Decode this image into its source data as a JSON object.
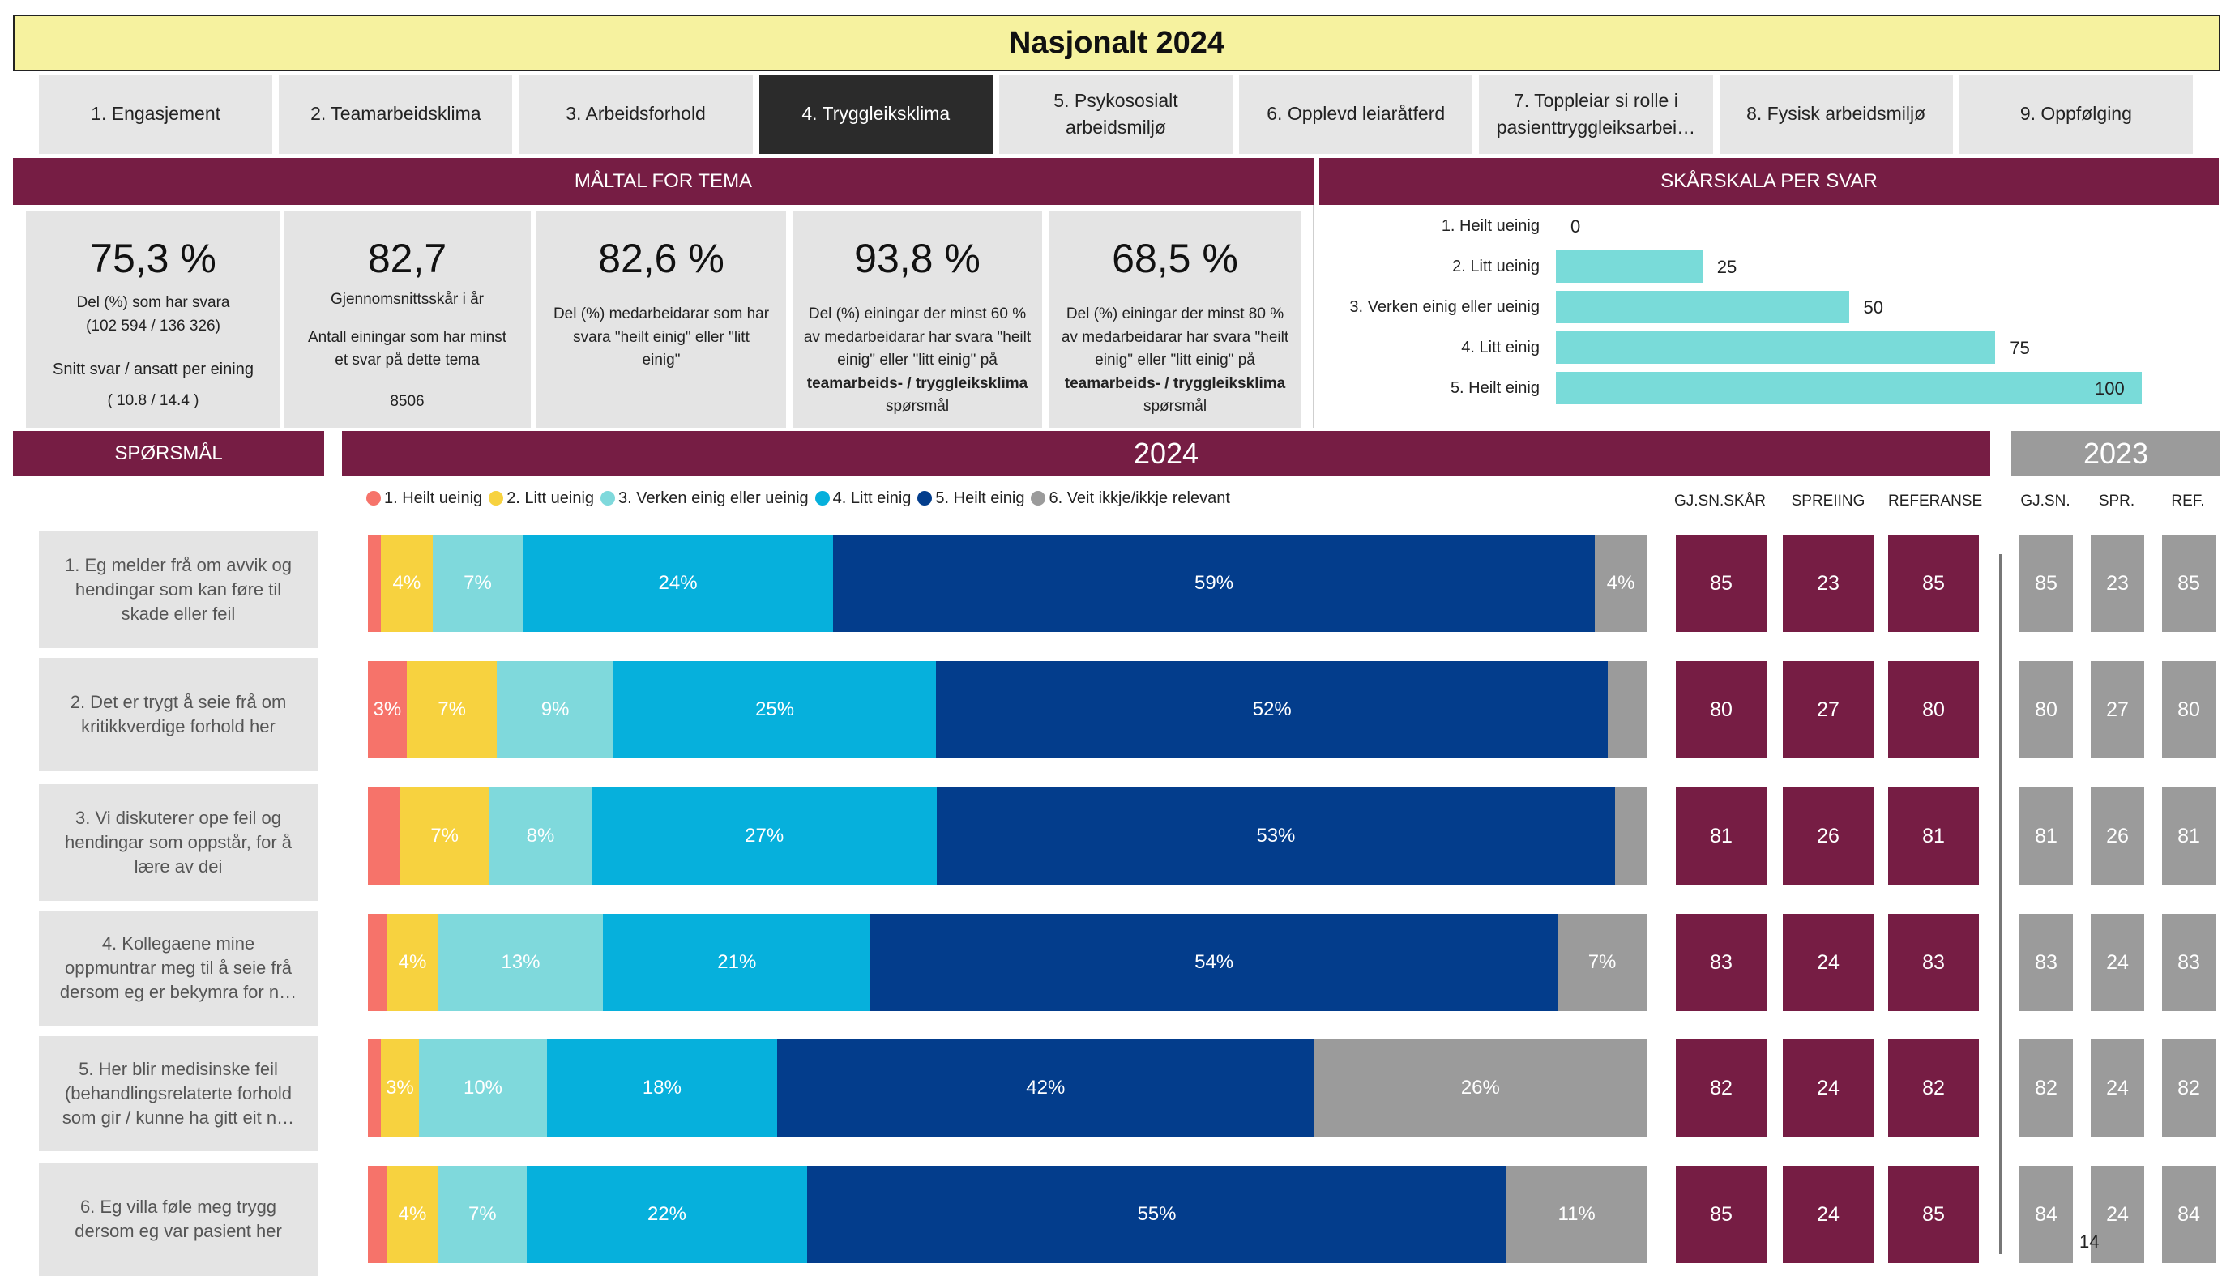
{
  "title": "Nasjonalt 2024",
  "tabs": [
    {
      "label": "1. Engasjement"
    },
    {
      "label": "2. Teamarbeidsklima"
    },
    {
      "label": "3. Arbeidsforhold"
    },
    {
      "label": "4. Tryggleiksklima"
    },
    {
      "label": "5. Psykososialt arbeidsmiljø"
    },
    {
      "label": "6. Opplevd leiaråtferd"
    },
    {
      "label": "7. Toppleiar si rolle i pasienttryggleiksarbei…"
    },
    {
      "label": "8. Fysisk arbeidsmiljø"
    },
    {
      "label": "9. Oppfølging"
    }
  ],
  "active_tab": "4. Tryggleiksklima",
  "maltal": {
    "header": "MÅLTAL FOR TEMA",
    "kpis": [
      {
        "value": "75,3 %",
        "line1": "Del (%) som har svara",
        "line2": "(102 594 / 136 326)",
        "line3": "Snitt svar / ansatt per eining",
        "line4": "( 10.8 / 14.4 )"
      },
      {
        "value": "82,7",
        "line1": "Gjennomsnittsskår i år",
        "line2": "Antall einingar som har minst et svar på dette tema",
        "line3": "8506"
      },
      {
        "value": "82,6 %",
        "line1": "Del (%) medarbeidarar som har svara \"heilt einig\" eller \"litt einig\""
      },
      {
        "value": "93,8 %",
        "line1": "Del (%) einingar der minst 60 % av medarbeidarar har svara \"heilt einig\" eller \"litt einig\" på",
        "bold": "teamarbeids- / tryggleiksklima",
        "line2": "spørsmål"
      },
      {
        "value": "68,5 %",
        "line1": "Del (%) einingar der minst 80 % av medarbeidarar har svara \"heilt einig\" eller \"litt einig\" på",
        "bold": "teamarbeids- / tryggleiksklima",
        "line2": "spørsmål"
      }
    ]
  },
  "skarskala": {
    "header": "SKÅRSKALA PER SVAR",
    "items": [
      {
        "label": "1. Heilt ueinig",
        "value": 0
      },
      {
        "label": "2. Litt ueinig",
        "value": 25
      },
      {
        "label": "3. Verken einig eller ueinig",
        "value": 50
      },
      {
        "label": "4. Litt einig",
        "value": 75
      },
      {
        "label": "5. Heilt einig",
        "value": 100
      }
    ]
  },
  "section": {
    "questions_header": "SPØRSMÅL",
    "year_current": "2024",
    "year_prev": "2023"
  },
  "col_heads": {
    "avg": "GJ.SN.SKÅR",
    "spread": "SPREIING",
    "ref": "REFERANSE",
    "avg23": "GJ.SN.",
    "spread23": "SPR.",
    "ref23": "REF."
  },
  "page_number": "14",
  "colors": {
    "heilt_ueinig": "#f6736a",
    "litt_ueinig": "#f7d23f",
    "verken": "#7fd9dc",
    "litt_einig": "#06b0dc",
    "heilt_einig": "#033d8c",
    "veit_ikkje": "#9b9b9b",
    "maroon": "#761d44",
    "title_bg": "#f6f29f"
  },
  "chart_data": {
    "type": "bar",
    "orientation": "horizontal",
    "stacked": true,
    "normalized_percent": true,
    "title": "2024",
    "legend_position": "top",
    "categories": [
      "1. Eg melder frå om avvik og hendingar som kan føre til skade eller feil",
      "2. Det er trygt å seie frå om kritikkverdige forhold her",
      "3. Vi diskuterer ope feil og hendingar som oppstår, for å lære av dei",
      "4. Kollegaene mine oppmuntrar meg til å seie frå dersom eg er bekymra for n…",
      "5. Her blir medisinske feil (behandlingsrelaterte forhold som gir / kunne ha gitt eit n…",
      "6. Eg villa føle meg trygg dersom eg var pasient her"
    ],
    "series": [
      {
        "name": "1. Heilt ueinig",
        "color": "#f6736a",
        "values": [
          1,
          3,
          2.5,
          1.5,
          1,
          1.5
        ],
        "labels": [
          "",
          "3%",
          "",
          "",
          "",
          ""
        ]
      },
      {
        "name": "2. Litt ueinig",
        "color": "#f7d23f",
        "values": [
          4,
          7,
          7,
          4,
          3,
          4
        ],
        "labels": [
          "4%",
          "7%",
          "7%",
          "4%",
          "3%",
          "4%"
        ]
      },
      {
        "name": "3. Verken einig eller ueinig",
        "color": "#7fd9dc",
        "values": [
          7,
          9,
          8,
          13,
          10,
          7
        ],
        "labels": [
          "7%",
          "9%",
          "8%",
          "13%",
          "10%",
          "7%"
        ]
      },
      {
        "name": "4. Litt einig",
        "color": "#06b0dc",
        "values": [
          24,
          25,
          27,
          21,
          18,
          22
        ],
        "labels": [
          "24%",
          "25%",
          "27%",
          "21%",
          "18%",
          "22%"
        ]
      },
      {
        "name": "5. Heilt einig",
        "color": "#033d8c",
        "values": [
          59,
          52,
          53,
          54,
          42,
          55
        ],
        "labels": [
          "59%",
          "52%",
          "53%",
          "54%",
          "42%",
          "55%"
        ]
      },
      {
        "name": "6. Veit ikkje/ikkje relevant",
        "color": "#9b9b9b",
        "values": [
          4,
          3,
          2.5,
          7,
          26,
          11
        ],
        "labels": [
          "4%",
          "",
          "",
          "7%",
          "26%",
          "11%"
        ]
      }
    ],
    "stats_2024": {
      "avg": [
        85,
        80,
        81,
        83,
        82,
        85
      ],
      "spread": [
        23,
        27,
        26,
        24,
        24,
        24
      ],
      "ref": [
        85,
        80,
        81,
        83,
        82,
        85
      ]
    },
    "stats_2023": {
      "avg": [
        85,
        80,
        81,
        83,
        82,
        84
      ],
      "spread": [
        23,
        27,
        26,
        24,
        24,
        24
      ],
      "ref": [
        85,
        80,
        81,
        83,
        82,
        84
      ]
    }
  }
}
